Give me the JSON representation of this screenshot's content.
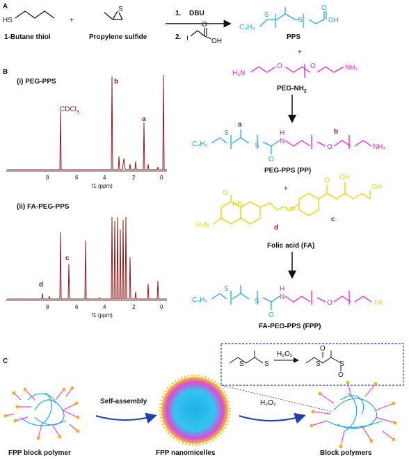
{
  "panels": {
    "A": "A",
    "B": "B",
    "C": "C"
  },
  "sectionA": {
    "reagent1": "1-Butane thiol",
    "reagent2": "Propylene sulfide",
    "sh": "HS",
    "step1": "1.",
    "step1_reagent": "DBU",
    "step2": "2.",
    "oh": "OH",
    "product_label": "PPS",
    "plus": "+"
  },
  "sectionB": {
    "spectrum1": {
      "title": "(i)   PEG-PPS",
      "solvent": "CDCl",
      "solvent_sub": "3",
      "peak_b": "b",
      "peak_a": "a",
      "xlabel": "f1 (ppm)",
      "ticks": [
        "8",
        "6",
        "4",
        "2",
        "0"
      ]
    },
    "spectrum2": {
      "title": "(ii)  FA-PEG-PPS",
      "peak_c": "c",
      "peak_d": "d",
      "xlabel": "f1 (ppm)",
      "ticks": [
        "8",
        "6",
        "4",
        "2",
        "0"
      ]
    },
    "chemistry": {
      "peg_nh2": "PEG-NH",
      "peg_nh2_sub": "2",
      "h2n": "H₂N",
      "nh2": "NH₂",
      "c4h9": "C₄H₉",
      "peg_pps_label": "PEG-PPS (PP)",
      "folic_label": "Folic acid (FA)",
      "fpp_label": "FA-PEG-PPS (FPP)",
      "fa": "FA",
      "label_a": "a",
      "label_b": "b",
      "label_c": "c",
      "label_d": "d",
      "plus": "+"
    }
  },
  "sectionC": {
    "h2o2_box": "H₂O₂",
    "self_assembly": "Self-assembly",
    "h2o2": "H₂O₂",
    "label1": "FPP block polymer",
    "label2": "FPP nanomicelles",
    "label3": "Block polymers"
  }
}
